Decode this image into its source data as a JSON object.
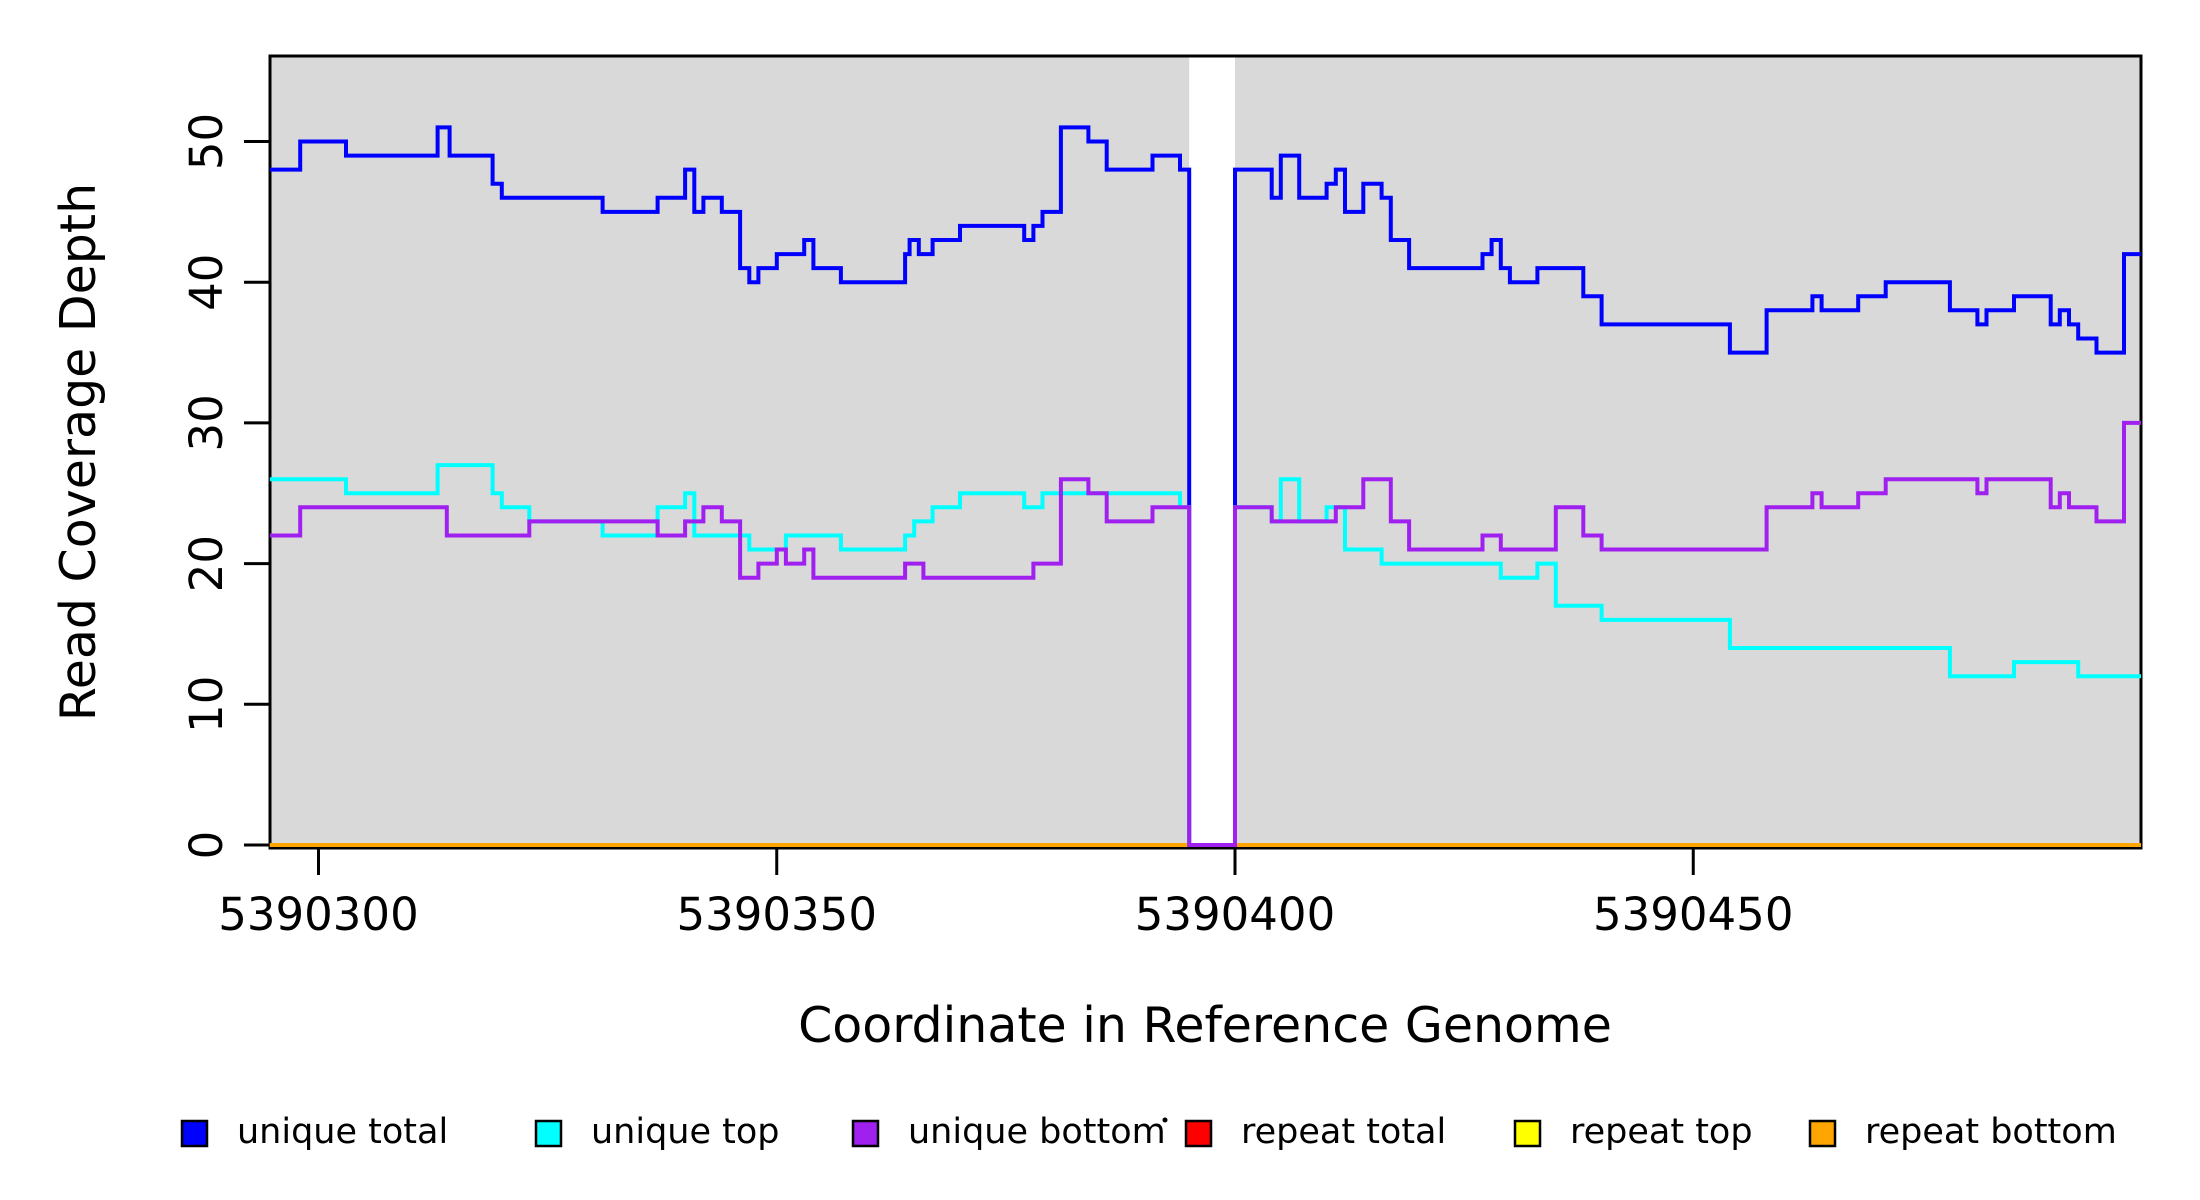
{
  "titles": {
    "x_axis_title": "Coordinate in Reference Genome",
    "y_axis_title": "Read Coverage Depth"
  },
  "chart_data": {
    "type": "line",
    "subtype": "step",
    "title": "",
    "xlabel": "Coordinate in Reference Genome",
    "ylabel": "Read Coverage Depth",
    "x_axis": {
      "ticks": [
        5390300,
        5390350,
        5390400,
        5390450
      ],
      "tick_labels": [
        "5390300",
        "5390350",
        "5390400",
        "5390450"
      ],
      "range": [
        5390294.7,
        5390498.9
      ]
    },
    "y_axis": {
      "ticks": [
        0,
        10,
        20,
        30,
        40,
        50
      ],
      "tick_labels": [
        "0",
        "10",
        "20",
        "30",
        "40",
        "50"
      ],
      "range": [
        0,
        56
      ]
    },
    "plot_background": "#D9D9D9",
    "page_background": "#FFFFFF",
    "border_color": "#000000",
    "gap_region": {
      "x_start": 5390395,
      "x_end": 5390400,
      "color": "#FFFFFF",
      "note": "zero-coverage gap, white column"
    },
    "grid": false,
    "legend_position": "bottom",
    "draw_order": [
      "repeat total",
      "repeat top",
      "repeat bottom",
      "unique total",
      "unique top",
      "unique bottom"
    ],
    "series": [
      {
        "name": "unique total",
        "color": "#0000FF",
        "points": [
          [
            5390294.7,
            48
          ],
          [
            5390298,
            50
          ],
          [
            5390303,
            49
          ],
          [
            5390313,
            51
          ],
          [
            5390314.3,
            49
          ],
          [
            5390319,
            47
          ],
          [
            5390320,
            46
          ],
          [
            5390331,
            45
          ],
          [
            5390337,
            46
          ],
          [
            5390340,
            48
          ],
          [
            5390341,
            45
          ],
          [
            5390342,
            46
          ],
          [
            5390344,
            45
          ],
          [
            5390346,
            41
          ],
          [
            5390347,
            40
          ],
          [
            5390348,
            41
          ],
          [
            5390350,
            42
          ],
          [
            5390353,
            43
          ],
          [
            5390354,
            41
          ],
          [
            5390357,
            40
          ],
          [
            5390364,
            42
          ],
          [
            5390364.5,
            43
          ],
          [
            5390365.5,
            42
          ],
          [
            5390367,
            43
          ],
          [
            5390370,
            44
          ],
          [
            5390377,
            43
          ],
          [
            5390378,
            44
          ],
          [
            5390379,
            45
          ],
          [
            5390381,
            51
          ],
          [
            5390384,
            50
          ],
          [
            5390386,
            48
          ],
          [
            5390391,
            49
          ],
          [
            5390394,
            48
          ],
          [
            5390395,
            0
          ],
          [
            5390400,
            48
          ],
          [
            5390404,
            46
          ],
          [
            5390405,
            49
          ],
          [
            5390407,
            46
          ],
          [
            5390410,
            47
          ],
          [
            5390411,
            48
          ],
          [
            5390412,
            45
          ],
          [
            5390414,
            47
          ],
          [
            5390416,
            46
          ],
          [
            5390417,
            43
          ],
          [
            5390419,
            41
          ],
          [
            5390427,
            42
          ],
          [
            5390428,
            43
          ],
          [
            5390429,
            41
          ],
          [
            5390430,
            40
          ],
          [
            5390433,
            41
          ],
          [
            5390438,
            39
          ],
          [
            5390440,
            37
          ],
          [
            5390454,
            35
          ],
          [
            5390458,
            38
          ],
          [
            5390463,
            39
          ],
          [
            5390464,
            38
          ],
          [
            5390468,
            39
          ],
          [
            5390471,
            40
          ],
          [
            5390478,
            38
          ],
          [
            5390481,
            37
          ],
          [
            5390482,
            38
          ],
          [
            5390485,
            39
          ],
          [
            5390489,
            37
          ],
          [
            5390490,
            38
          ],
          [
            5390491,
            37
          ],
          [
            5390492,
            36
          ],
          [
            5390494,
            35
          ],
          [
            5390497,
            42
          ]
        ]
      },
      {
        "name": "unique top",
        "color": "#00FFFF",
        "points": [
          [
            5390294.7,
            26
          ],
          [
            5390303,
            25
          ],
          [
            5390313,
            27
          ],
          [
            5390319,
            25
          ],
          [
            5390320,
            24
          ],
          [
            5390323,
            23
          ],
          [
            5390331,
            22
          ],
          [
            5390337,
            24
          ],
          [
            5390340,
            25
          ],
          [
            5390341,
            22
          ],
          [
            5390347,
            21
          ],
          [
            5390351,
            22
          ],
          [
            5390357,
            21
          ],
          [
            5390364,
            22
          ],
          [
            5390365,
            23
          ],
          [
            5390367,
            24
          ],
          [
            5390370,
            25
          ],
          [
            5390377,
            24
          ],
          [
            5390379,
            25
          ],
          [
            5390394,
            24
          ],
          [
            5390395,
            0
          ],
          [
            5390400,
            24
          ],
          [
            5390404,
            23
          ],
          [
            5390405,
            26
          ],
          [
            5390407,
            23
          ],
          [
            5390410,
            24
          ],
          [
            5390412,
            21
          ],
          [
            5390416,
            20
          ],
          [
            5390429,
            19
          ],
          [
            5390433,
            20
          ],
          [
            5390435,
            17
          ],
          [
            5390440,
            16
          ],
          [
            5390454,
            14
          ],
          [
            5390478,
            12
          ],
          [
            5390485,
            13
          ],
          [
            5390492,
            12
          ]
        ]
      },
      {
        "name": "unique bottom",
        "color": "#A020F0",
        "points": [
          [
            5390294.7,
            22
          ],
          [
            5390298,
            24
          ],
          [
            5390314,
            22
          ],
          [
            5390323,
            23
          ],
          [
            5390337,
            22
          ],
          [
            5390340,
            23
          ],
          [
            5390342,
            24
          ],
          [
            5390344,
            23
          ],
          [
            5390346,
            19
          ],
          [
            5390348,
            20
          ],
          [
            5390350,
            21
          ],
          [
            5390351,
            20
          ],
          [
            5390353,
            21
          ],
          [
            5390354,
            19
          ],
          [
            5390364,
            20
          ],
          [
            5390366,
            19
          ],
          [
            5390378,
            20
          ],
          [
            5390381,
            26
          ],
          [
            5390384,
            25
          ],
          [
            5390386,
            23
          ],
          [
            5390391,
            24
          ],
          [
            5390395,
            0
          ],
          [
            5390400,
            24
          ],
          [
            5390404,
            23
          ],
          [
            5390411,
            24
          ],
          [
            5390414,
            26
          ],
          [
            5390417,
            23
          ],
          [
            5390419,
            21
          ],
          [
            5390427,
            22
          ],
          [
            5390429,
            21
          ],
          [
            5390435,
            24
          ],
          [
            5390438,
            22
          ],
          [
            5390440,
            21
          ],
          [
            5390458,
            24
          ],
          [
            5390463,
            25
          ],
          [
            5390464,
            24
          ],
          [
            5390468,
            25
          ],
          [
            5390471,
            26
          ],
          [
            5390481,
            25
          ],
          [
            5390482,
            26
          ],
          [
            5390489,
            24
          ],
          [
            5390490,
            25
          ],
          [
            5390491,
            24
          ],
          [
            5390494,
            23
          ],
          [
            5390497,
            30
          ]
        ]
      },
      {
        "name": "repeat total",
        "color": "#FF0000",
        "points": [
          [
            5390294.7,
            0
          ]
        ]
      },
      {
        "name": "repeat top",
        "color": "#FFFF00",
        "points": [
          [
            5390294.7,
            0
          ]
        ]
      },
      {
        "name": "repeat bottom",
        "color": "#FFA500",
        "points": [
          [
            5390294.7,
            0
          ]
        ]
      }
    ],
    "legend": {
      "entries": [
        {
          "label": "unique total",
          "color": "#0000FF"
        },
        {
          "label": "unique top",
          "color": "#00FFFF"
        },
        {
          "label": "unique bottom",
          "color": "#A020F0"
        },
        {
          "label": "repeat total",
          "color": "#FF0000"
        },
        {
          "label": "repeat top",
          "color": "#FFFF00"
        },
        {
          "label": "repeat bottom",
          "color": "#FFA500"
        }
      ]
    }
  }
}
